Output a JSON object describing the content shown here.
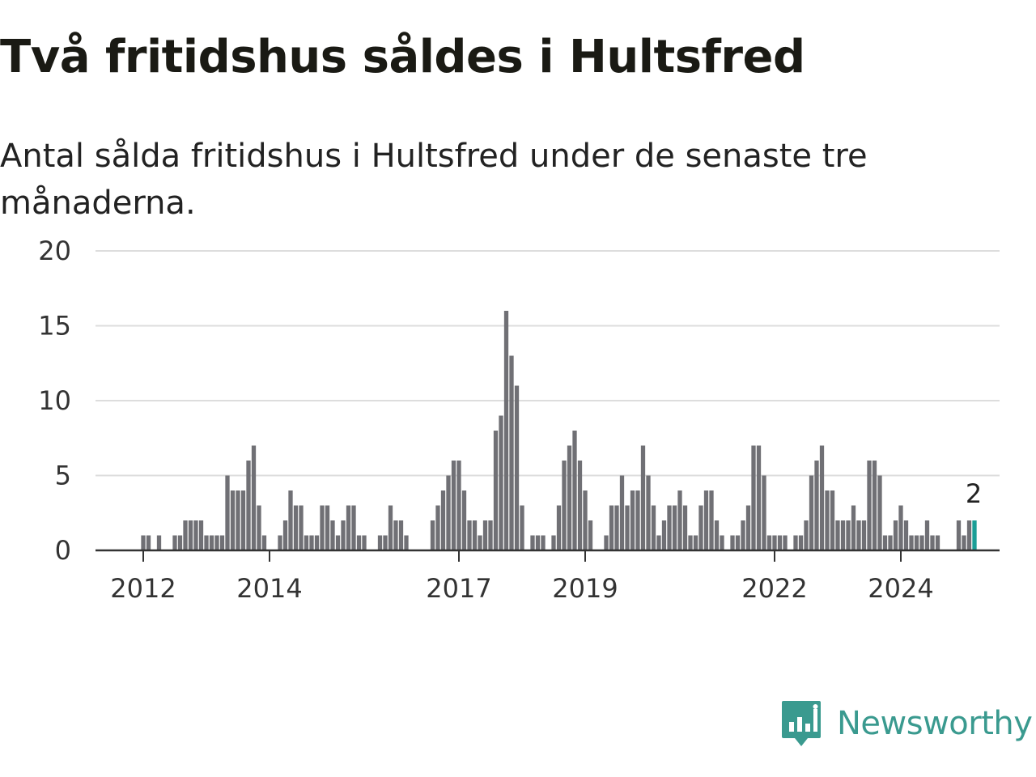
{
  "title": "Två fritidshus såldes i Hultsfred",
  "subtitle": "Antal sålda fritidshus i Hultsfred under de senaste tre månaderna.",
  "brand": {
    "name": "Newsworthy",
    "color": "#3a9a8f",
    "icon": "newsworthy-logo-icon"
  },
  "colors": {
    "bar": "#707075",
    "highlight": "#1a9e96",
    "grid": "#dddddd",
    "axis": "#333333"
  },
  "chart_data": {
    "type": "bar",
    "title": "Två fritidshus såldes i Hultsfred",
    "subtitle": "Antal sålda fritidshus i Hultsfred under de senaste tre månaderna.",
    "ylim": [
      0,
      20
    ],
    "yticks": [
      0,
      5,
      10,
      15,
      20
    ],
    "grid": true,
    "x_start": "2011-12",
    "x_step": "monthly",
    "xticks": [
      {
        "label": "2012",
        "index": 1
      },
      {
        "label": "2014",
        "index": 25
      },
      {
        "label": "2017",
        "index": 61
      },
      {
        "label": "2019",
        "index": 85
      },
      {
        "label": "2022",
        "index": 121
      },
      {
        "label": "2024",
        "index": 145
      }
    ],
    "values": [
      0,
      1,
      1,
      0,
      1,
      0,
      0,
      1,
      1,
      2,
      2,
      2,
      2,
      1,
      1,
      1,
      1,
      5,
      4,
      4,
      4,
      6,
      7,
      3,
      1,
      0,
      0,
      1,
      2,
      4,
      3,
      3,
      1,
      1,
      1,
      3,
      3,
      2,
      1,
      2,
      3,
      3,
      1,
      1,
      0,
      0,
      1,
      1,
      3,
      2,
      2,
      1,
      0,
      0,
      0,
      0,
      2,
      3,
      4,
      5,
      6,
      6,
      4,
      2,
      2,
      1,
      2,
      2,
      8,
      9,
      16,
      13,
      11,
      3,
      0,
      1,
      1,
      1,
      0,
      1,
      3,
      6,
      7,
      8,
      6,
      4,
      2,
      0,
      0,
      1,
      3,
      3,
      5,
      3,
      4,
      4,
      7,
      5,
      3,
      1,
      2,
      3,
      3,
      4,
      3,
      1,
      1,
      3,
      4,
      4,
      2,
      1,
      0,
      1,
      1,
      2,
      3,
      7,
      7,
      5,
      1,
      1,
      1,
      1,
      0,
      1,
      1,
      2,
      5,
      6,
      7,
      4,
      4,
      2,
      2,
      2,
      3,
      2,
      2,
      6,
      6,
      5,
      1,
      1,
      2,
      3,
      2,
      1,
      1,
      1,
      2,
      1,
      1,
      0,
      0,
      0,
      2,
      1,
      2,
      2
    ],
    "highlight_index": 159,
    "annotation": {
      "label": "2",
      "index": 159
    }
  }
}
